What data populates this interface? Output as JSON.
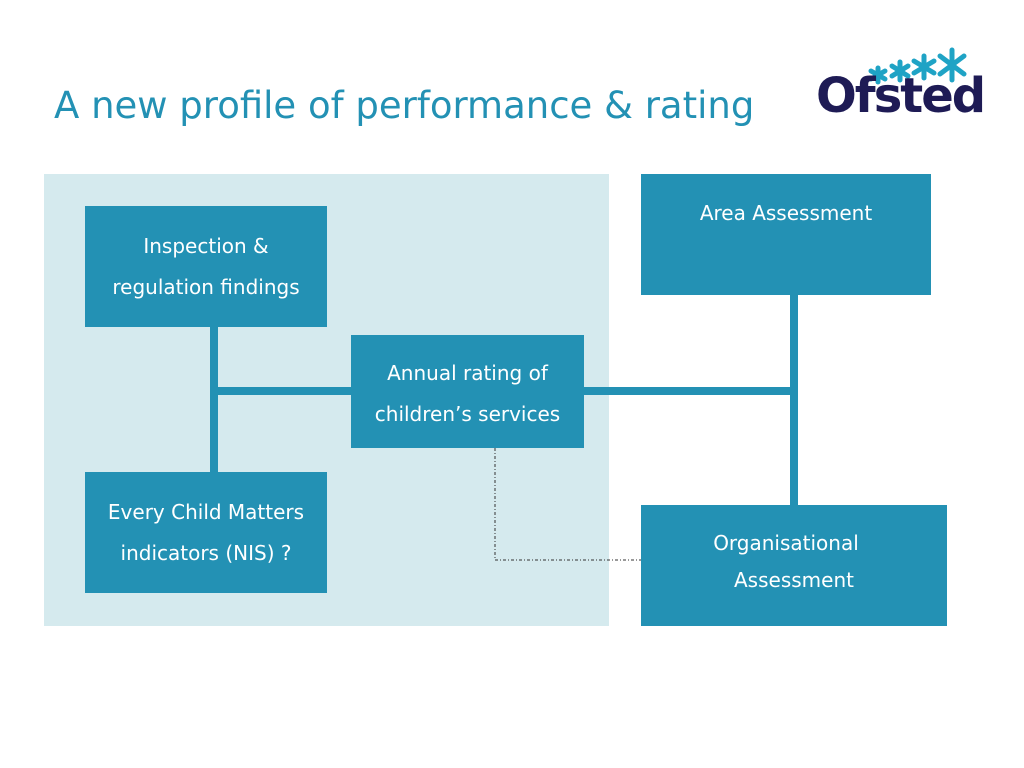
{
  "slide": {
    "title": "A new profile of performance & rating"
  },
  "logo": {
    "text": "Ofsted",
    "icon": "ofsted-stars-icon"
  },
  "colors": {
    "accent": "#2391b4",
    "panel": "#d5eaee",
    "logo_text": "#1e1b55",
    "logo_stars": "#1fa3c5"
  },
  "diagram": {
    "inspection_box": {
      "line1": "Inspection &",
      "line2": "regulation findings"
    },
    "ecm_box": {
      "line1": "Every Child Matters",
      "line2": "indicators (NIS) ?"
    },
    "annual_box": {
      "line1": "Annual rating of",
      "line2": "children’s services"
    },
    "area_box": {
      "line1": "Area Assessment"
    },
    "org_box": {
      "line1": "Organisational",
      "line2": "Assessment"
    }
  }
}
